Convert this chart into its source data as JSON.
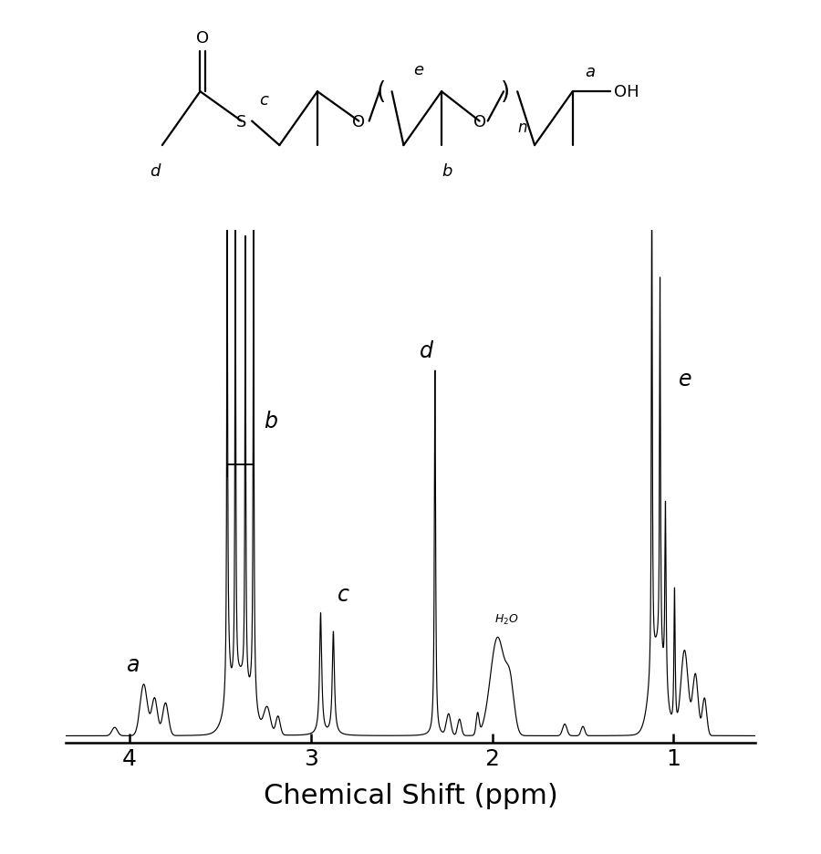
{
  "xlabel": "Chemical Shift (ppm)",
  "xlim": [
    4.35,
    0.55
  ],
  "ylim": [
    -0.015,
    1.08
  ],
  "background_color": "#ffffff",
  "xticks": [
    4.0,
    3.0,
    2.0,
    1.0
  ],
  "xtick_fontsize": 18,
  "xlabel_fontsize": 22,
  "structure": {
    "d_label": "d",
    "c_label": "c",
    "e_label": "e",
    "b_label": "b",
    "a_label": "a",
    "n_label": "n",
    "S_atom": "S",
    "O1_atom": "O",
    "O2_atom": "O",
    "OH_group": "OH"
  }
}
